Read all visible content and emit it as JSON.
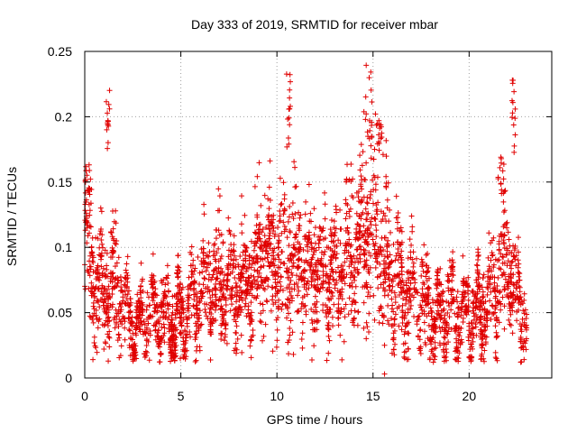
{
  "chart_data": {
    "type": "scatter",
    "title": "Day 333 of 2019, SRMTID for receiver mbar",
    "xlabel": "GPS time / hours",
    "ylabel": "SRMTID / TECUs",
    "xlim": [
      0,
      24.3
    ],
    "ylim": [
      0,
      0.25
    ],
    "xticks": [
      0,
      5,
      10,
      15,
      20
    ],
    "xtick_labels": [
      "0",
      "5",
      "10",
      "15",
      "20"
    ],
    "yticks": [
      0,
      0.05,
      0.1,
      0.15,
      0.2,
      0.25
    ],
    "ytick_labels": [
      "0",
      "0.05",
      "0.1",
      "0.15",
      "0.2",
      "0.25"
    ],
    "grid": true,
    "marker": "+",
    "color": "#e00000",
    "trend": {
      "x": [
        0,
        0.5,
        1,
        1.5,
        2,
        2.5,
        3,
        3.5,
        4,
        4.5,
        5,
        5.5,
        6,
        6.5,
        7,
        7.5,
        8,
        8.5,
        9,
        9.5,
        10,
        10.5,
        11,
        11.5,
        12,
        12.5,
        13,
        13.5,
        14,
        14.5,
        15,
        15.5,
        16,
        16.5,
        17,
        17.5,
        18,
        18.5,
        19,
        19.5,
        20,
        20.5,
        21,
        21.5,
        22,
        22.5,
        23
      ],
      "y": [
        0.095,
        0.075,
        0.065,
        0.075,
        0.058,
        0.038,
        0.042,
        0.05,
        0.048,
        0.045,
        0.045,
        0.052,
        0.062,
        0.07,
        0.074,
        0.072,
        0.07,
        0.072,
        0.085,
        0.09,
        0.088,
        0.092,
        0.085,
        0.082,
        0.08,
        0.078,
        0.078,
        0.085,
        0.095,
        0.11,
        0.115,
        0.1,
        0.075,
        0.068,
        0.075,
        0.06,
        0.052,
        0.045,
        0.055,
        0.05,
        0.045,
        0.05,
        0.058,
        0.075,
        0.09,
        0.06,
        0.045
      ]
    },
    "spikes": [
      {
        "x": [
          0.0,
          0.3
        ],
        "y": [
          0.13,
          0.165
        ]
      },
      {
        "x": [
          1.1,
          1.3
        ],
        "y": [
          0.175,
          0.224
        ]
      },
      {
        "x": [
          10.5,
          10.8
        ],
        "y": [
          0.17,
          0.234
        ]
      },
      {
        "x": [
          14.5,
          15.0
        ],
        "y": [
          0.17,
          0.24
        ]
      },
      {
        "x": [
          15.2,
          15.5
        ],
        "y": [
          0.17,
          0.2
        ]
      },
      {
        "x": [
          21.5,
          21.9
        ],
        "y": [
          0.14,
          0.17
        ]
      },
      {
        "x": [
          22.2,
          22.4
        ],
        "y": [
          0.17,
          0.232
        ]
      }
    ],
    "n_points": 3200,
    "seed": 333
  }
}
